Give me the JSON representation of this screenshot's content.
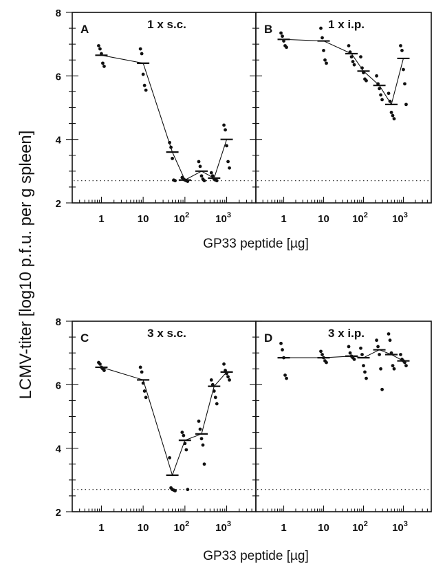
{
  "figure": {
    "ylabel": "LCMV-titer [log10 p.f.u. per g spleen]",
    "xlabel": "GP33 peptide  [µg]"
  },
  "chart_data": [
    {
      "type": "scatter",
      "panel": "A",
      "title": "1 x s.c.",
      "x_scale": "log",
      "xlim": [
        0.2,
        5000
      ],
      "ylim": [
        2,
        8
      ],
      "yticks": [
        2,
        4,
        6,
        8
      ],
      "xticks": [
        1,
        10,
        100,
        1000
      ],
      "xtick_labels": [
        "1",
        "10",
        "10^2",
        "10^3"
      ],
      "detection_limit": 2.7,
      "means": [
        [
          1,
          6.65
        ],
        [
          10,
          6.4
        ],
        [
          50,
          3.6
        ],
        [
          100,
          2.72
        ],
        [
          250,
          3.0
        ],
        [
          500,
          2.78
        ],
        [
          1000,
          4.0
        ]
      ],
      "points": [
        [
          1,
          6.95
        ],
        [
          1,
          6.85
        ],
        [
          1,
          6.7
        ],
        [
          1,
          6.4
        ],
        [
          1,
          6.3
        ],
        [
          10,
          6.85
        ],
        [
          10,
          6.7
        ],
        [
          10,
          6.05
        ],
        [
          10,
          5.7
        ],
        [
          10,
          5.55
        ],
        [
          50,
          3.9
        ],
        [
          50,
          3.75
        ],
        [
          50,
          3.4
        ],
        [
          50,
          2.72
        ],
        [
          50,
          2.7
        ],
        [
          100,
          2.8
        ],
        [
          100,
          2.75
        ],
        [
          100,
          2.72
        ],
        [
          100,
          2.7
        ],
        [
          100,
          2.68
        ],
        [
          250,
          3.3
        ],
        [
          250,
          3.15
        ],
        [
          250,
          2.85
        ],
        [
          250,
          2.75
        ],
        [
          250,
          2.7
        ],
        [
          500,
          2.95
        ],
        [
          500,
          2.85
        ],
        [
          500,
          2.75
        ],
        [
          500,
          2.72
        ],
        [
          500,
          2.7
        ],
        [
          1000,
          4.45
        ],
        [
          1000,
          4.3
        ],
        [
          1000,
          3.8
        ],
        [
          1000,
          3.3
        ],
        [
          1000,
          3.1
        ]
      ]
    },
    {
      "type": "scatter",
      "panel": "B",
      "title": "1 x i.p.",
      "x_scale": "log",
      "xlim": [
        0.2,
        5000
      ],
      "ylim": [
        2,
        8
      ],
      "yticks": [
        2,
        4,
        6,
        8
      ],
      "xticks": [
        1,
        10,
        100,
        1000
      ],
      "xtick_labels": [
        "1",
        "10",
        "10^2",
        "10^3"
      ],
      "detection_limit": 2.7,
      "means": [
        [
          1,
          7.15
        ],
        [
          10,
          7.1
        ],
        [
          50,
          6.7
        ],
        [
          100,
          6.15
        ],
        [
          250,
          5.7
        ],
        [
          500,
          5.1
        ],
        [
          1000,
          6.55
        ]
      ],
      "points": [
        [
          1,
          7.35
        ],
        [
          1,
          7.25
        ],
        [
          1,
          7.1
        ],
        [
          1,
          6.95
        ],
        [
          1,
          6.9
        ],
        [
          10,
          7.5
        ],
        [
          10,
          7.2
        ],
        [
          10,
          6.8
        ],
        [
          10,
          6.5
        ],
        [
          10,
          6.4
        ],
        [
          50,
          6.95
        ],
        [
          50,
          6.75
        ],
        [
          50,
          6.6
        ],
        [
          50,
          6.45
        ],
        [
          50,
          6.35
        ],
        [
          100,
          6.6
        ],
        [
          100,
          6.25
        ],
        [
          100,
          6.1
        ],
        [
          100,
          5.9
        ],
        [
          100,
          5.85
        ],
        [
          250,
          6.0
        ],
        [
          250,
          5.75
        ],
        [
          250,
          5.6
        ],
        [
          250,
          5.4
        ],
        [
          250,
          5.25
        ],
        [
          500,
          5.45
        ],
        [
          500,
          5.2
        ],
        [
          500,
          4.85
        ],
        [
          500,
          4.75
        ],
        [
          500,
          4.65
        ],
        [
          1000,
          6.95
        ],
        [
          1000,
          6.8
        ],
        [
          1000,
          6.2
        ],
        [
          1000,
          5.75
        ],
        [
          1000,
          5.1
        ]
      ]
    },
    {
      "type": "scatter",
      "panel": "C",
      "title": "3 x s.c.",
      "x_scale": "log",
      "xlim": [
        0.2,
        5000
      ],
      "ylim": [
        2,
        8
      ],
      "yticks": [
        2,
        4,
        6,
        8
      ],
      "xticks": [
        1,
        10,
        100,
        1000
      ],
      "xtick_labels": [
        "1",
        "10",
        "10^2",
        "10^3"
      ],
      "detection_limit": 2.7,
      "means": [
        [
          1,
          6.55
        ],
        [
          10,
          6.15
        ],
        [
          50,
          3.15
        ],
        [
          100,
          4.25
        ],
        [
          250,
          4.45
        ],
        [
          500,
          5.95
        ],
        [
          1000,
          6.4
        ]
      ],
      "points": [
        [
          1,
          6.7
        ],
        [
          1,
          6.65
        ],
        [
          1,
          6.55
        ],
        [
          1,
          6.5
        ],
        [
          1,
          6.45
        ],
        [
          10,
          6.55
        ],
        [
          10,
          6.4
        ],
        [
          10,
          6.05
        ],
        [
          10,
          5.8
        ],
        [
          10,
          5.6
        ],
        [
          50,
          3.7
        ],
        [
          50,
          2.75
        ],
        [
          50,
          2.7
        ],
        [
          50,
          2.68
        ],
        [
          50,
          2.66
        ],
        [
          100,
          4.5
        ],
        [
          100,
          4.4
        ],
        [
          100,
          4.15
        ],
        [
          100,
          3.95
        ],
        [
          100,
          2.7
        ],
        [
          250,
          4.85
        ],
        [
          250,
          4.6
        ],
        [
          250,
          4.3
        ],
        [
          250,
          4.1
        ],
        [
          250,
          3.5
        ],
        [
          500,
          6.15
        ],
        [
          500,
          6.0
        ],
        [
          500,
          5.8
        ],
        [
          500,
          5.6
        ],
        [
          500,
          5.4
        ],
        [
          1000,
          6.65
        ],
        [
          1000,
          6.45
        ],
        [
          1000,
          6.35
        ],
        [
          1000,
          6.25
        ],
        [
          1000,
          6.15
        ]
      ]
    },
    {
      "type": "scatter",
      "panel": "D",
      "title": "3 x i.p.",
      "x_scale": "log",
      "xlim": [
        0.2,
        5000
      ],
      "ylim": [
        2,
        8
      ],
      "yticks": [
        2,
        4,
        6,
        8
      ],
      "xticks": [
        1,
        10,
        100,
        1000
      ],
      "xtick_labels": [
        "1",
        "10",
        "10^2",
        "10^3"
      ],
      "detection_limit": 2.7,
      "means": [
        [
          1,
          6.85
        ],
        [
          10,
          6.85
        ],
        [
          50,
          6.9
        ],
        [
          100,
          6.85
        ],
        [
          250,
          7.1
        ],
        [
          500,
          6.95
        ],
        [
          1000,
          6.75
        ]
      ],
      "points": [
        [
          1,
          7.3
        ],
        [
          1,
          7.1
        ],
        [
          1,
          6.85
        ],
        [
          1,
          6.3
        ],
        [
          1,
          6.2
        ],
        [
          10,
          7.05
        ],
        [
          10,
          6.95
        ],
        [
          10,
          6.85
        ],
        [
          10,
          6.75
        ],
        [
          10,
          6.7
        ],
        [
          50,
          7.2
        ],
        [
          50,
          7.0
        ],
        [
          50,
          6.9
        ],
        [
          50,
          6.85
        ],
        [
          50,
          6.8
        ],
        [
          100,
          7.15
        ],
        [
          100,
          6.95
        ],
        [
          100,
          6.6
        ],
        [
          100,
          6.4
        ],
        [
          100,
          6.2
        ],
        [
          250,
          7.4
        ],
        [
          250,
          7.2
        ],
        [
          250,
          6.95
        ],
        [
          250,
          6.5
        ],
        [
          250,
          5.85
        ],
        [
          500,
          7.6
        ],
        [
          500,
          7.4
        ],
        [
          500,
          7.0
        ],
        [
          500,
          6.6
        ],
        [
          500,
          6.5
        ],
        [
          1000,
          6.95
        ],
        [
          1000,
          6.8
        ],
        [
          1000,
          6.75
        ],
        [
          1000,
          6.7
        ],
        [
          1000,
          6.6
        ]
      ]
    }
  ]
}
